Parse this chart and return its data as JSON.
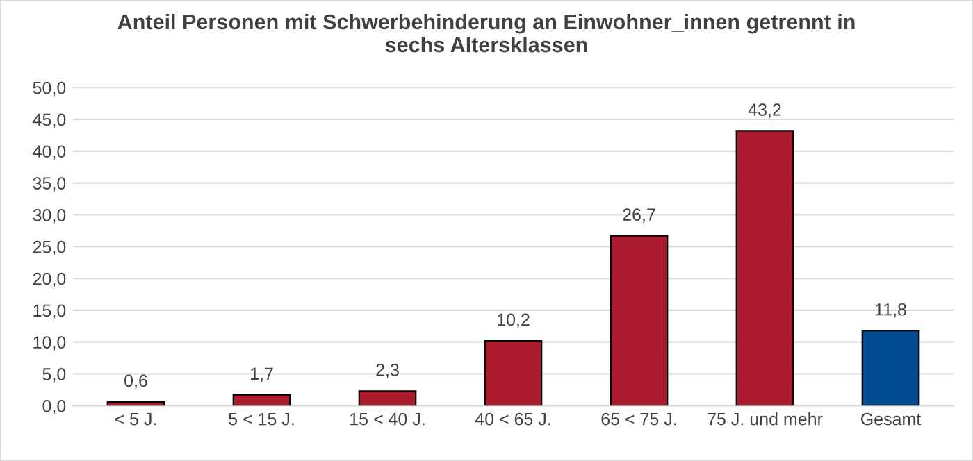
{
  "chart_data": {
    "type": "bar",
    "title": "Anteil Personen mit Schwerbehinderung an Einwohner_innen getrennt in\nsechs Altersklassen",
    "categories": [
      "< 5 J.",
      "5 < 15 J.",
      "15 < 40 J.",
      "40 < 65 J.",
      "65 < 75 J.",
      "75 J. und mehr",
      "Gesamt"
    ],
    "values": [
      0.6,
      1.7,
      2.3,
      10.2,
      26.7,
      43.2,
      11.8
    ],
    "value_labels": [
      "0,6",
      "1,7",
      "2,3",
      "10,2",
      "26,7",
      "43,2",
      "11,8"
    ],
    "colors": [
      "#ab1a2d",
      "#ab1a2d",
      "#ab1a2d",
      "#ab1a2d",
      "#ab1a2d",
      "#ab1a2d",
      "#004a8f"
    ],
    "ylim": [
      0,
      50
    ],
    "yticks": [
      {
        "value": 0,
        "label": "0,0"
      },
      {
        "value": 5,
        "label": "5,0"
      },
      {
        "value": 10,
        "label": "10,0"
      },
      {
        "value": 15,
        "label": "15,0"
      },
      {
        "value": 20,
        "label": "20,0"
      },
      {
        "value": 25,
        "label": "25,0"
      },
      {
        "value": 30,
        "label": "30,0"
      },
      {
        "value": 35,
        "label": "35,0"
      },
      {
        "value": 40,
        "label": "40,0"
      },
      {
        "value": 45,
        "label": "45,0"
      },
      {
        "value": 50,
        "label": "50,0"
      }
    ],
    "grid": "y",
    "legend": false
  }
}
